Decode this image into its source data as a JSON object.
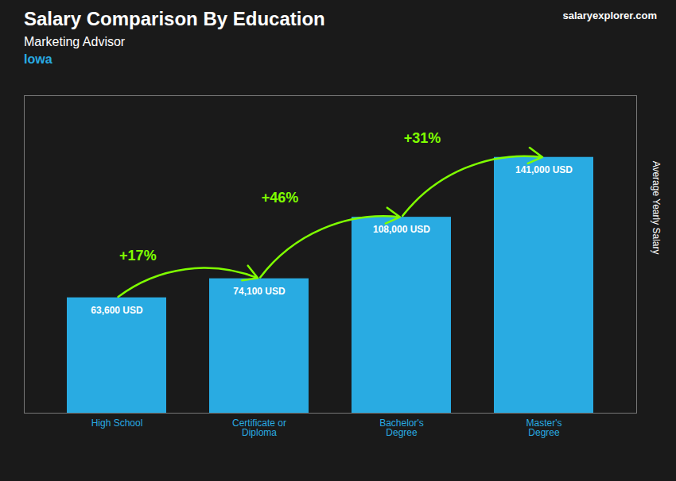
{
  "chart_data": {
    "type": "bar",
    "title": "Salary Comparison By Education",
    "subtitle": "Marketing Advisor",
    "location": "Iowa",
    "source": "salaryexplorer.com",
    "ylabel": "Average Yearly Salary",
    "categories": [
      "High School",
      "Certificate or\nDiploma",
      "Bachelor's\nDegree",
      "Master's\nDegree"
    ],
    "values": [
      63600,
      74100,
      108000,
      141000
    ],
    "value_labels": [
      "63,600 USD",
      "74,100 USD",
      "108,000 USD",
      "141,000 USD"
    ],
    "data_labels": true,
    "color": "#29ABE2",
    "change_labels": [
      "+17%",
      "+46%",
      "+31%"
    ],
    "change_color": "#7FFF00",
    "ylim": [
      0,
      175000
    ],
    "tick_labels": "x",
    "grid": false
  }
}
